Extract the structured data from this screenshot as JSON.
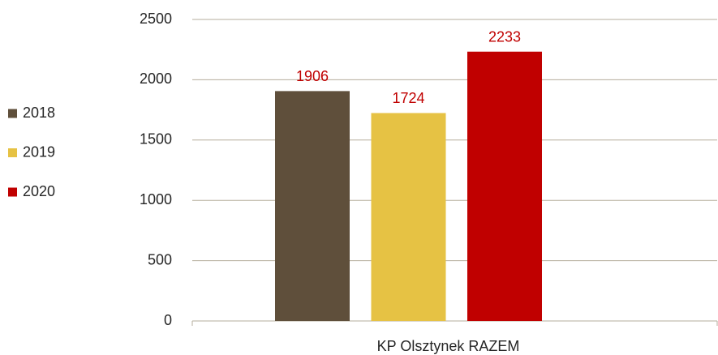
{
  "chart_data": {
    "type": "bar",
    "categories": [
      "KP Olsztynek RAZEM"
    ],
    "series": [
      {
        "name": "2018",
        "color": "#5f4f3b",
        "values": [
          1906
        ]
      },
      {
        "name": "2019",
        "color": "#e6c244",
        "values": [
          1724
        ]
      },
      {
        "name": "2020",
        "color": "#c00000",
        "values": [
          2233
        ]
      }
    ],
    "value_label_color": "#c00000",
    "ylim": [
      0,
      2500
    ],
    "yticks": [
      0,
      500,
      1000,
      1500,
      2000,
      2500
    ],
    "grid": true,
    "legend": "left"
  }
}
